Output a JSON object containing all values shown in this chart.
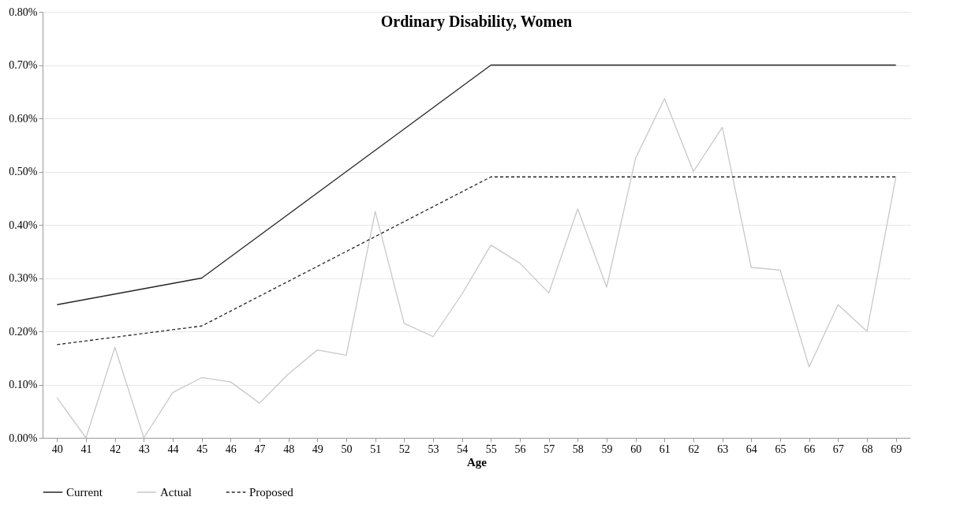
{
  "chart_data": {
    "type": "line",
    "title": "Ordinary Disability, Women",
    "xlabel": "Age",
    "categories": [
      "40",
      "41",
      "42",
      "43",
      "44",
      "45",
      "46",
      "47",
      "48",
      "49",
      "50",
      "51",
      "52",
      "53",
      "54",
      "55",
      "56",
      "57",
      "58",
      "59",
      "60",
      "61",
      "62",
      "63",
      "64",
      "65",
      "66",
      "67",
      "68",
      "69"
    ],
    "series": [
      {
        "name": "Current",
        "color": "#262626",
        "line_style": "solid",
        "values": [
          0.25,
          0.26,
          0.27,
          0.28,
          0.29,
          0.3,
          0.34,
          0.38,
          0.42,
          0.46,
          0.5,
          0.54,
          0.58,
          0.62,
          0.66,
          0.7,
          0.7,
          0.7,
          0.7,
          0.7,
          0.7,
          0.7,
          0.7,
          0.7,
          0.7,
          0.7,
          0.7,
          0.7,
          0.7,
          0.7
        ]
      },
      {
        "name": "Actual",
        "color": "#c8c8c8",
        "line_style": "solid",
        "values": [
          0.075,
          0.0,
          0.17,
          0.0,
          0.085,
          0.113,
          0.105,
          0.065,
          0.12,
          0.165,
          0.155,
          0.425,
          0.215,
          0.19,
          0.27,
          0.362,
          0.328,
          0.272,
          0.43,
          0.283,
          0.525,
          0.637,
          0.5,
          0.583,
          0.32,
          0.315,
          0.133,
          0.25,
          0.2,
          0.49
        ]
      },
      {
        "name": "Proposed",
        "color": "#262626",
        "line_style": "dashed",
        "values": [
          0.175,
          0.182,
          0.189,
          0.196,
          0.203,
          0.21,
          0.238,
          0.266,
          0.294,
          0.322,
          0.35,
          0.378,
          0.406,
          0.434,
          0.462,
          0.49,
          0.49,
          0.49,
          0.49,
          0.49,
          0.49,
          0.49,
          0.49,
          0.49,
          0.49,
          0.49,
          0.49,
          0.49,
          0.49,
          0.49
        ]
      }
    ],
    "ylim": [
      0,
      0.8
    ],
    "yticks": [
      {
        "value": 0,
        "label": "0.00%"
      },
      {
        "value": 0.1,
        "label": "0.10%"
      },
      {
        "value": 0.2,
        "label": "0.20%"
      },
      {
        "value": 0.3,
        "label": "0.30%"
      },
      {
        "value": 0.4,
        "label": "0.40%"
      },
      {
        "value": 0.5,
        "label": "0.50%"
      },
      {
        "value": 0.6,
        "label": "0.60%"
      },
      {
        "value": 0.7,
        "label": "0.70%"
      },
      {
        "value": 0.8,
        "label": "0.80%"
      }
    ],
    "grid": "y",
    "legend": "bottom",
    "marker": "none"
  }
}
